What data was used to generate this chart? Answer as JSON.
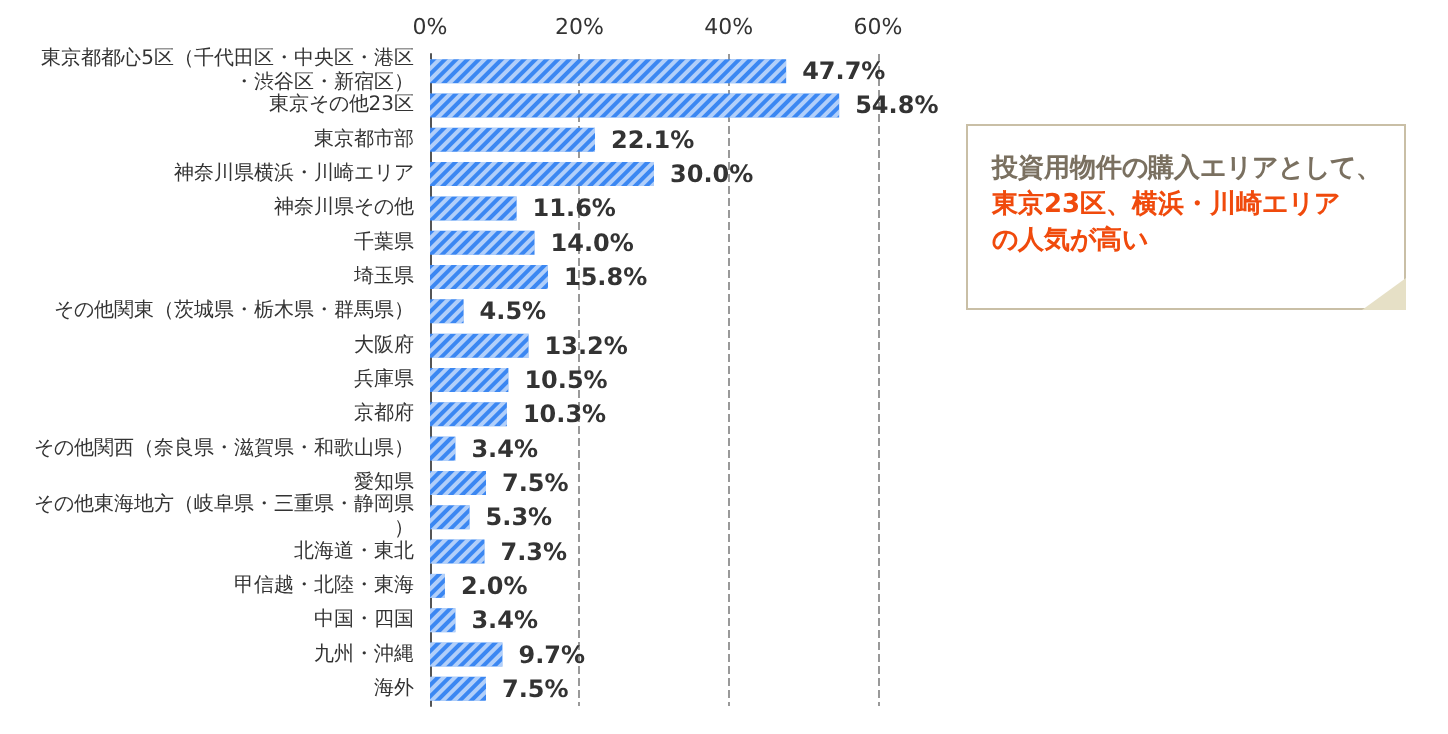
{
  "chart_data": {
    "type": "bar",
    "orientation": "horizontal",
    "categories": [
      "東京都都心5区（千代田区・中央区・港区・渋谷区・新宿区）",
      "東京その他23区",
      "東京都市部",
      "神奈川県横浜・川崎エリア",
      "神奈川県その他",
      "千葉県",
      "埼玉県",
      "その他関東（茨城県・栃木県・群馬県）",
      "大阪府",
      "兵庫県",
      "京都府",
      "その他関西（奈良県・滋賀県・和歌山県）",
      "愛知県",
      "その他東海地方（岐阜県・三重県・静岡県）",
      "北海道・東北",
      "甲信越・北陸・東海",
      "中国・四国",
      "九州・沖縄",
      "海外"
    ],
    "values": [
      47.7,
      54.8,
      22.1,
      30.0,
      11.6,
      14.0,
      15.8,
      4.5,
      13.2,
      10.5,
      10.3,
      3.4,
      7.5,
      5.3,
      7.3,
      2.0,
      3.4,
      9.7,
      7.5
    ],
    "value_labels": [
      "47.7%",
      "54.8%",
      "22.1%",
      "30.0%",
      "11.6%",
      "14.0%",
      "15.8%",
      "4.5%",
      "13.2%",
      "10.5%",
      "10.3%",
      "3.4%",
      "7.5%",
      "5.3%",
      "7.3%",
      "2.0%",
      "3.4%",
      "9.7%",
      "7.5%"
    ],
    "color": "#3b87f2",
    "xlim": [
      0,
      60
    ],
    "xticks": [
      {
        "value": 0,
        "label": "0%"
      },
      {
        "value": 20,
        "label": "20%"
      },
      {
        "value": 40,
        "label": "40%"
      },
      {
        "value": 60,
        "label": "60%"
      }
    ],
    "grid": "x",
    "annotations": [
      "投資用物件の購入エリアとして、",
      "東京23区、横浜・川崎エリアの人気が高い"
    ]
  }
}
